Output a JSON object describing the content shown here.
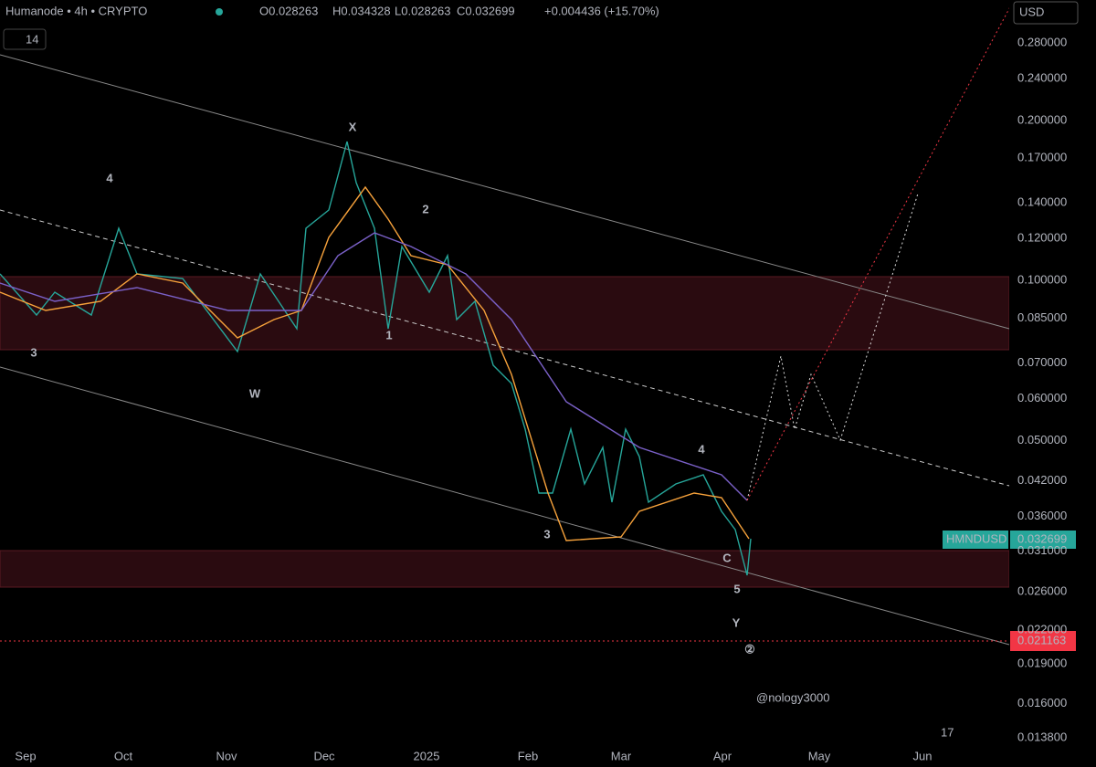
{
  "header": {
    "symbol": "Humanode • 4h • CRYPTO",
    "open": "O0.028263",
    "high": "H0.034328",
    "low": "L0.028263",
    "close": "C0.032699",
    "change": "+0.004436 (+15.70%)",
    "interval_chip": "14"
  },
  "currency": "USD",
  "price_axis": [
    "0.280000",
    "0.240000",
    "0.200000",
    "0.170000",
    "0.140000",
    "0.120000",
    "0.100000",
    "0.085000",
    "0.070000",
    "0.060000",
    "0.050000",
    "0.042000",
    "0.036000",
    "0.031000",
    "0.026000",
    "0.022000",
    "0.019000",
    "0.016000",
    "0.013800"
  ],
  "time_axis": [
    "Sep",
    "Oct",
    "Nov",
    "Dec",
    "2025",
    "Feb",
    "Mar",
    "Apr",
    "May",
    "Jun"
  ],
  "tags": {
    "symbol": "HMNDUSD",
    "last": "0.032699",
    "level": "0.021163"
  },
  "waves": [
    {
      "label": "X",
      "color": "#f7a23b"
    },
    {
      "label": "4",
      "color": "#f23645"
    },
    {
      "label": "2",
      "color": "#f23645"
    },
    {
      "label": "3",
      "color": "#f23645"
    },
    {
      "label": "W",
      "color": "#f7a23b"
    },
    {
      "label": "1",
      "color": "#f23645"
    },
    {
      "label": "3",
      "color": "#f23645"
    },
    {
      "label": "4",
      "color": "#f23645"
    },
    {
      "label": "C",
      "color": "#ffffff"
    },
    {
      "label": "5",
      "color": "#f23645"
    },
    {
      "label": "Y",
      "color": "#f7a23b"
    },
    {
      "label": "②",
      "color": "#ffffff"
    }
  ],
  "watermark": "@nology3000"
}
